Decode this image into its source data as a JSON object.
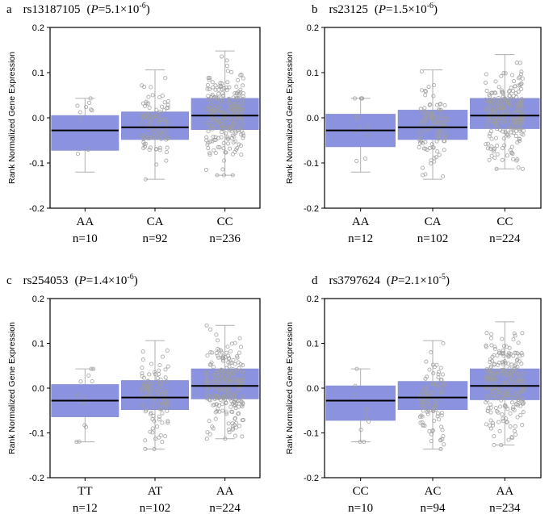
{
  "panel_style": {
    "box_fill": "#8b93e0",
    "median_color": "#000000",
    "whisker_color": "#b0b0b0",
    "point_color": "#9e9e9e",
    "frame_color": "#000000"
  },
  "chart_data": [
    {
      "type": "box",
      "panel": "a",
      "snp": "rs13187105",
      "p_label": "P",
      "p_value": "=5.1×10",
      "p_exponent": "-6",
      "ylabel": "Rank Normalized Gene Expression",
      "ylim": [
        -0.2,
        0.2
      ],
      "yticks": [
        "0.2",
        "0.1",
        "0.0",
        "-0.1",
        "-0.2"
      ],
      "ytick_values": [
        0.2,
        0.1,
        0.0,
        -0.1,
        -0.2
      ],
      "categories": [
        "AA",
        "CA",
        "CC"
      ],
      "counts": [
        "n=10",
        "n=92",
        "n=236"
      ],
      "boxes": [
        {
          "whislo": -0.12,
          "q1": -0.072,
          "med": -0.028,
          "q3": 0.005,
          "whishi": 0.043
        },
        {
          "whislo": -0.136,
          "q1": -0.048,
          "med": -0.021,
          "q3": 0.013,
          "whishi": 0.106
        },
        {
          "whislo": -0.127,
          "q1": -0.026,
          "med": 0.005,
          "q3": 0.043,
          "whishi": 0.148
        }
      ]
    },
    {
      "type": "box",
      "panel": "b",
      "snp": "rs23125",
      "p_label": "P",
      "p_value": "=1.5×10",
      "p_exponent": "-6",
      "ylabel": "Rank Normalized Gene Expression",
      "ylim": [
        -0.2,
        0.2
      ],
      "yticks": [
        "0.2",
        "0.1",
        "0.0",
        "-0.1",
        "-0.2"
      ],
      "ytick_values": [
        0.2,
        0.1,
        0.0,
        -0.1,
        -0.2
      ],
      "categories": [
        "AA",
        "CA",
        "CC"
      ],
      "counts": [
        "n=12",
        "n=102",
        "n=224"
      ],
      "boxes": [
        {
          "whislo": -0.12,
          "q1": -0.064,
          "med": -0.028,
          "q3": 0.008,
          "whishi": 0.043
        },
        {
          "whislo": -0.136,
          "q1": -0.048,
          "med": -0.021,
          "q3": 0.017,
          "whishi": 0.106
        },
        {
          "whislo": -0.113,
          "q1": -0.024,
          "med": 0.005,
          "q3": 0.043,
          "whishi": 0.14
        }
      ]
    },
    {
      "type": "box",
      "panel": "c",
      "snp": "rs254053",
      "p_label": "P",
      "p_value": "=1.4×10",
      "p_exponent": "-6",
      "ylabel": "Rank Normalized Gene Expression",
      "ylim": [
        -0.2,
        0.2
      ],
      "yticks": [
        "0.2",
        "0.1",
        "0.0",
        "-0.1",
        "-0.2"
      ],
      "ytick_values": [
        0.2,
        0.1,
        0.0,
        -0.1,
        -0.2
      ],
      "categories": [
        "TT",
        "AT",
        "AA"
      ],
      "counts": [
        "n=12",
        "n=102",
        "n=224"
      ],
      "boxes": [
        {
          "whislo": -0.12,
          "q1": -0.064,
          "med": -0.028,
          "q3": 0.008,
          "whishi": 0.043
        },
        {
          "whislo": -0.136,
          "q1": -0.048,
          "med": -0.021,
          "q3": 0.017,
          "whishi": 0.106
        },
        {
          "whislo": -0.113,
          "q1": -0.024,
          "med": 0.005,
          "q3": 0.043,
          "whishi": 0.14
        }
      ]
    },
    {
      "type": "box",
      "panel": "d",
      "snp": "rs3797624",
      "p_label": "P",
      "p_value": "=2.1×10",
      "p_exponent": "-5",
      "ylabel": "Rank Normalized Gene Expression",
      "ylim": [
        -0.2,
        0.2
      ],
      "yticks": [
        "0.2",
        "0.1",
        "0.0",
        "-0.1",
        "-0.2"
      ],
      "ytick_values": [
        0.2,
        0.1,
        0.0,
        -0.1,
        -0.2
      ],
      "categories": [
        "CC",
        "AC",
        "AA"
      ],
      "counts": [
        "n=10",
        "n=94",
        "n=234"
      ],
      "boxes": [
        {
          "whislo": -0.12,
          "q1": -0.072,
          "med": -0.028,
          "q3": 0.005,
          "whishi": 0.043
        },
        {
          "whislo": -0.136,
          "q1": -0.048,
          "med": -0.021,
          "q3": 0.015,
          "whishi": 0.106
        },
        {
          "whislo": -0.127,
          "q1": -0.026,
          "med": 0.005,
          "q3": 0.043,
          "whishi": 0.148
        }
      ]
    }
  ]
}
